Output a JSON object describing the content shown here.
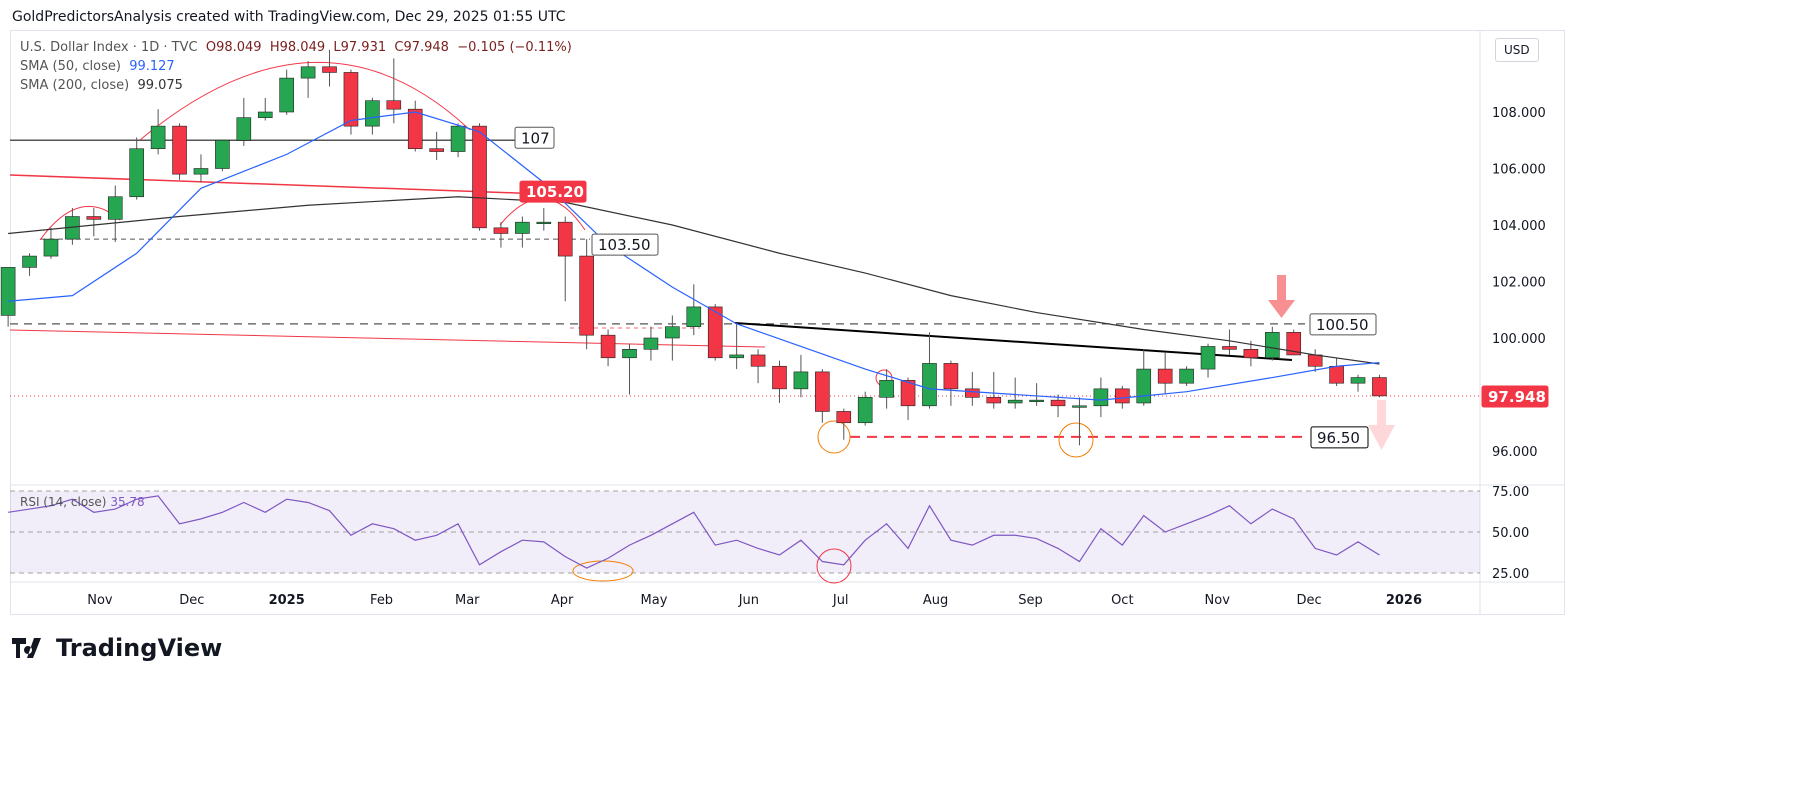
{
  "credit": "GoldPredictorsAnalysis created with TradingView.com, Dec 29, 2025 01:55 UTC",
  "brand": "TradingView",
  "currency": "USD",
  "legend": {
    "symbol": "U.S. Dollar Index · 1D · TVC",
    "o": "O98.049",
    "h": "H98.049",
    "l": "L97.931",
    "c": "C97.948",
    "chg": "−0.105 (−0.11%)",
    "sma50_label": "SMA (50, close)",
    "sma50_value": "99.127",
    "sma200_label": "SMA (200, close)",
    "sma200_value": "99.075",
    "rsi_label": "RSI (14, close)",
    "rsi_value": "35.78"
  },
  "colors": {
    "up": "#26a650",
    "down": "#f23645",
    "sma50": "#2962ff",
    "sma200": "#333333",
    "rsi": "#7e57c2"
  },
  "chart_data": {
    "type": "candlestick",
    "title": "U.S. Dollar Index · 1D · TVC",
    "ylim": [
      95,
      110.5
    ],
    "yticks": [
      "108.000",
      "106.000",
      "104.000",
      "102.000",
      "100.000",
      "96.000"
    ],
    "ytick_values": [
      108,
      106,
      104,
      102,
      100,
      96
    ],
    "xticks": [
      {
        "label": "Nov",
        "day": 32
      },
      {
        "label": "Dec",
        "day": 62
      },
      {
        "label": "2025",
        "day": 93
      },
      {
        "label": "Feb",
        "day": 124
      },
      {
        "label": "Mar",
        "day": 152
      },
      {
        "label": "Apr",
        "day": 183
      },
      {
        "label": "May",
        "day": 213
      },
      {
        "label": "Jun",
        "day": 244
      },
      {
        "label": "Jul",
        "day": 274
      },
      {
        "label": "Aug",
        "day": 305
      },
      {
        "label": "Sep",
        "day": 336
      },
      {
        "label": "Oct",
        "day": 366
      },
      {
        "label": "Nov",
        "day": 397
      },
      {
        "label": "Dec",
        "day": 427
      },
      {
        "label": "2026",
        "day": 458
      }
    ],
    "start_date": "2024-09-30",
    "ohlc_weekly": [
      [
        100.8,
        102.5,
        100.4,
        102.5
      ],
      [
        102.5,
        103.0,
        102.2,
        102.9
      ],
      [
        102.9,
        103.9,
        102.8,
        103.5
      ],
      [
        103.5,
        104.6,
        103.3,
        104.3
      ],
      [
        104.3,
        104.6,
        103.6,
        104.2
      ],
      [
        104.2,
        105.4,
        103.4,
        105.0
      ],
      [
        105.0,
        107.1,
        104.9,
        106.7
      ],
      [
        106.7,
        108.1,
        106.5,
        107.5
      ],
      [
        107.5,
        107.6,
        105.6,
        105.8
      ],
      [
        105.8,
        106.5,
        105.5,
        106.0
      ],
      [
        106.0,
        107.0,
        105.9,
        107.0
      ],
      [
        107.0,
        108.5,
        106.8,
        107.8
      ],
      [
        107.8,
        108.5,
        107.7,
        108.0
      ],
      [
        108.0,
        109.5,
        107.9,
        109.2
      ],
      [
        109.2,
        109.8,
        108.5,
        109.6
      ],
      [
        109.6,
        110.2,
        108.9,
        109.4
      ],
      [
        109.4,
        109.5,
        107.2,
        107.5
      ],
      [
        107.5,
        108.5,
        107.2,
        108.4
      ],
      [
        108.4,
        109.9,
        107.6,
        108.1
      ],
      [
        108.1,
        108.4,
        106.6,
        106.7
      ],
      [
        106.7,
        107.3,
        106.3,
        106.6
      ],
      [
        106.6,
        107.6,
        106.4,
        107.5
      ],
      [
        107.5,
        107.6,
        103.8,
        103.9
      ],
      [
        103.9,
        104.1,
        103.2,
        103.7
      ],
      [
        103.7,
        104.3,
        103.2,
        104.1
      ],
      [
        104.1,
        104.6,
        103.8,
        104.1
      ],
      [
        104.1,
        104.3,
        101.3,
        102.9
      ],
      [
        102.9,
        103.5,
        99.6,
        100.1
      ],
      [
        100.1,
        100.3,
        99.0,
        99.3
      ],
      [
        99.3,
        99.8,
        98.0,
        99.6
      ],
      [
        99.6,
        100.4,
        99.2,
        100.0
      ],
      [
        100.0,
        100.8,
        99.2,
        100.4
      ],
      [
        100.4,
        101.9,
        100.1,
        101.1
      ],
      [
        101.1,
        101.2,
        99.2,
        99.3
      ],
      [
        99.3,
        100.5,
        98.9,
        99.4
      ],
      [
        99.4,
        99.6,
        98.4,
        99.0
      ],
      [
        99.0,
        99.2,
        97.7,
        98.2
      ],
      [
        98.2,
        99.4,
        97.9,
        98.8
      ],
      [
        98.8,
        98.9,
        97.0,
        97.4
      ],
      [
        97.4,
        97.5,
        96.4,
        97.0
      ],
      [
        97.0,
        98.1,
        96.9,
        97.9
      ],
      [
        97.9,
        98.9,
        97.5,
        98.5
      ],
      [
        98.5,
        98.6,
        97.1,
        97.6
      ],
      [
        97.6,
        100.2,
        97.5,
        99.1
      ],
      [
        99.1,
        99.2,
        97.6,
        98.2
      ],
      [
        98.2,
        98.8,
        97.6,
        97.9
      ],
      [
        97.9,
        98.8,
        97.5,
        97.7
      ],
      [
        97.7,
        98.6,
        97.5,
        97.8
      ],
      [
        97.8,
        98.4,
        97.6,
        97.8
      ],
      [
        97.8,
        98.0,
        97.2,
        97.6
      ],
      [
        97.6,
        97.9,
        96.2,
        97.6
      ],
      [
        97.6,
        98.6,
        97.2,
        98.2
      ],
      [
        98.2,
        98.3,
        97.5,
        97.7
      ],
      [
        97.7,
        99.6,
        97.6,
        98.9
      ],
      [
        98.9,
        99.5,
        98.0,
        98.4
      ],
      [
        98.4,
        99.0,
        98.3,
        98.9
      ],
      [
        98.9,
        99.8,
        98.6,
        99.7
      ],
      [
        99.7,
        100.3,
        99.4,
        99.6
      ],
      [
        99.6,
        99.9,
        99.0,
        99.3
      ],
      [
        99.3,
        100.4,
        99.2,
        100.2
      ],
      [
        100.2,
        100.3,
        99.4,
        99.4
      ],
      [
        99.4,
        99.6,
        98.8,
        99.0
      ],
      [
        99.0,
        99.3,
        98.3,
        98.4
      ],
      [
        98.4,
        98.7,
        98.1,
        98.6
      ],
      [
        98.6,
        98.7,
        97.9,
        97.95
      ]
    ],
    "sma50": [
      [
        0,
        101.3
      ],
      [
        3,
        101.5
      ],
      [
        6,
        103
      ],
      [
        9,
        105.3
      ],
      [
        13,
        106.5
      ],
      [
        16,
        107.7
      ],
      [
        19,
        108.0
      ],
      [
        22,
        107.3
      ],
      [
        25,
        105.5
      ],
      [
        28,
        103.3
      ],
      [
        31,
        101.8
      ],
      [
        34,
        100.5
      ],
      [
        37,
        99.7
      ],
      [
        40,
        98.9
      ],
      [
        43,
        98.2
      ],
      [
        47,
        98.0
      ],
      [
        51,
        97.8
      ],
      [
        55,
        98.1
      ],
      [
        59,
        98.6
      ],
      [
        62,
        99.0
      ],
      [
        64,
        99.13
      ]
    ],
    "sma200": [
      [
        0,
        103.7
      ],
      [
        8,
        104.3
      ],
      [
        14,
        104.7
      ],
      [
        21,
        105.0
      ],
      [
        26,
        104.8
      ],
      [
        31,
        104.0
      ],
      [
        36,
        103.0
      ],
      [
        40,
        102.3
      ],
      [
        44,
        101.5
      ],
      [
        48,
        100.9
      ],
      [
        53,
        100.3
      ],
      [
        57,
        99.9
      ],
      [
        61,
        99.4
      ],
      [
        64,
        99.08
      ]
    ],
    "rsi": {
      "ylim": [
        20,
        80
      ],
      "levels": [
        "75.00",
        "50.00",
        "25.00"
      ],
      "level_values": [
        75,
        50,
        25
      ],
      "values": [
        62,
        64,
        66,
        70,
        62,
        64,
        70,
        72,
        55,
        58,
        62,
        68,
        62,
        70,
        68,
        63,
        48,
        55,
        52,
        45,
        48,
        55,
        30,
        38,
        45,
        44,
        35,
        28,
        34,
        42,
        48,
        55,
        62,
        42,
        45,
        40,
        36,
        45,
        32,
        30,
        45,
        55,
        40,
        66,
        45,
        42,
        48,
        48,
        46,
        40,
        32,
        52,
        42,
        60,
        50,
        55,
        60,
        66,
        55,
        64,
        58,
        40,
        36,
        44,
        36
      ]
    },
    "annotations": {
      "level_107": "107",
      "level_105": "105.20",
      "level_103": "103.50",
      "level_100": "100.50",
      "level_96": "96.50",
      "last_price": "97.948"
    }
  }
}
